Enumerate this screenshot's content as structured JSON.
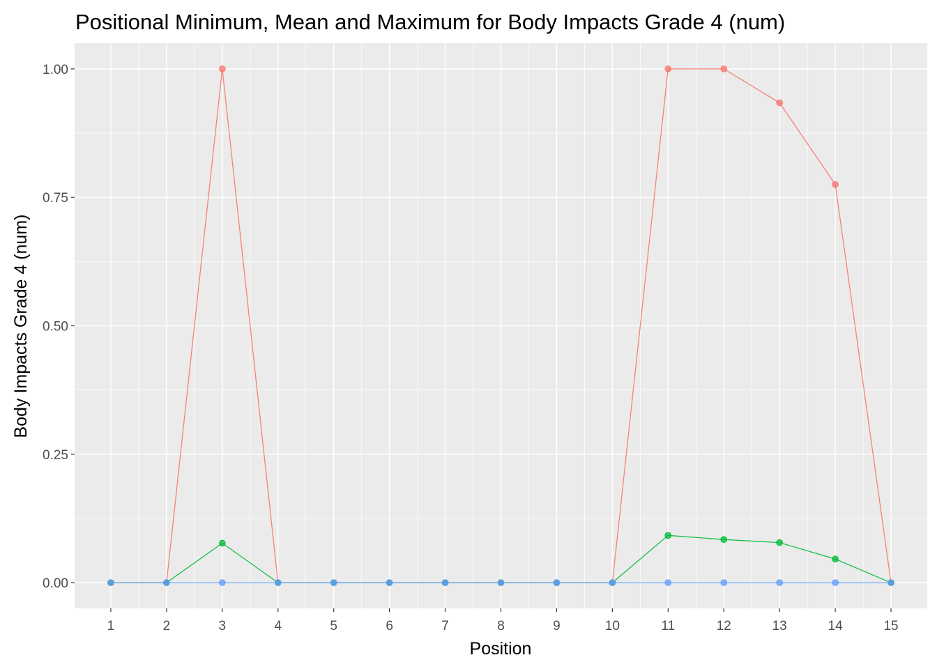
{
  "chart_data": {
    "type": "line",
    "title": "Positional Minimum, Mean and Maximum for Body Impacts Grade 4 (num)",
    "xlabel": "Position",
    "ylabel": "Body Impacts Grade 4 (num)",
    "x": [
      1,
      2,
      3,
      4,
      5,
      6,
      7,
      8,
      9,
      10,
      11,
      12,
      13,
      14,
      15
    ],
    "xlim": [
      0.35,
      15.65
    ],
    "ylim": [
      -0.05,
      1.05
    ],
    "yticks": [
      0.0,
      0.25,
      0.5,
      0.75,
      1.0
    ],
    "ytick_labels": [
      "0.00",
      "0.25",
      "0.50",
      "0.75",
      "1.00"
    ],
    "xtick_labels": [
      "1",
      "2",
      "3",
      "4",
      "5",
      "6",
      "7",
      "8",
      "9",
      "10",
      "11",
      "12",
      "13",
      "14",
      "15"
    ],
    "grid": true,
    "legend": "none",
    "series": [
      {
        "color": "#f8766d",
        "values": [
          0,
          0,
          1.0,
          0,
          0,
          0,
          0,
          0,
          0,
          0,
          1.0,
          1.0,
          0.934,
          0.775,
          0
        ]
      },
      {
        "color": "#00ba38",
        "values": [
          0,
          0,
          0.077,
          0,
          0,
          0,
          0,
          0,
          0,
          0,
          0.092,
          0.084,
          0.078,
          0.046,
          0
        ]
      },
      {
        "color": "#619cff",
        "values": [
          0,
          0,
          0,
          0,
          0,
          0,
          0,
          0,
          0,
          0,
          0,
          0,
          0,
          0,
          0
        ]
      }
    ]
  }
}
